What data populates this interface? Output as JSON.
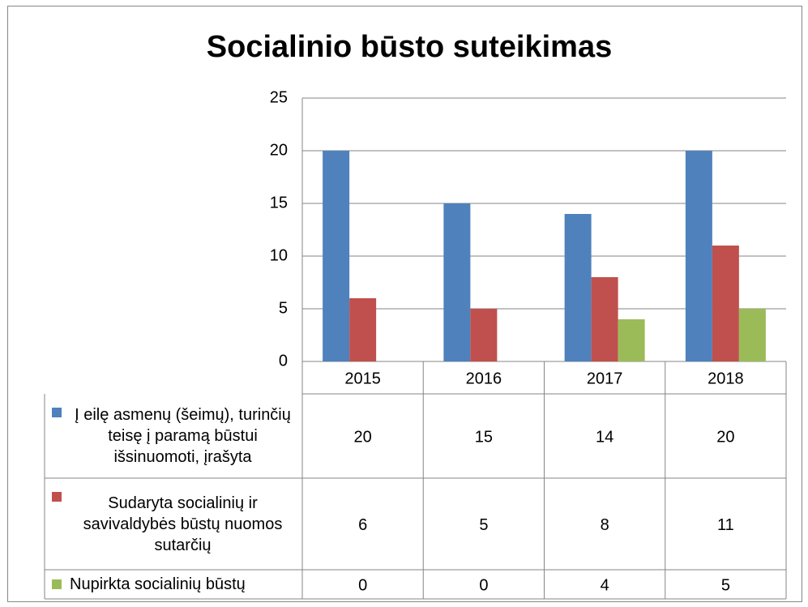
{
  "chart_data": {
    "type": "bar",
    "title": "Socialinio būsto suteikimas",
    "categories": [
      "2015",
      "2016",
      "2017",
      "2018"
    ],
    "series": [
      {
        "name": "Į eilę asmenų (šeimų), turinčių teisę į paramą būstui išsinuomoti, įrašyta",
        "color": "#4f81bd",
        "values": [
          20,
          15,
          14,
          20
        ]
      },
      {
        "name": "Sudaryta socialinių ir savivaldybės būstų nuomos sutarčių",
        "color": "#c0504d",
        "values": [
          6,
          5,
          8,
          11
        ]
      },
      {
        "name": "Nupirkta socialinių būstų",
        "color": "#9bbb59",
        "values": [
          0,
          0,
          4,
          5
        ]
      }
    ],
    "ylim": [
      0,
      25
    ],
    "yticks": [
      0,
      5,
      10,
      15,
      20,
      25
    ],
    "grid": true,
    "data_table": true
  }
}
